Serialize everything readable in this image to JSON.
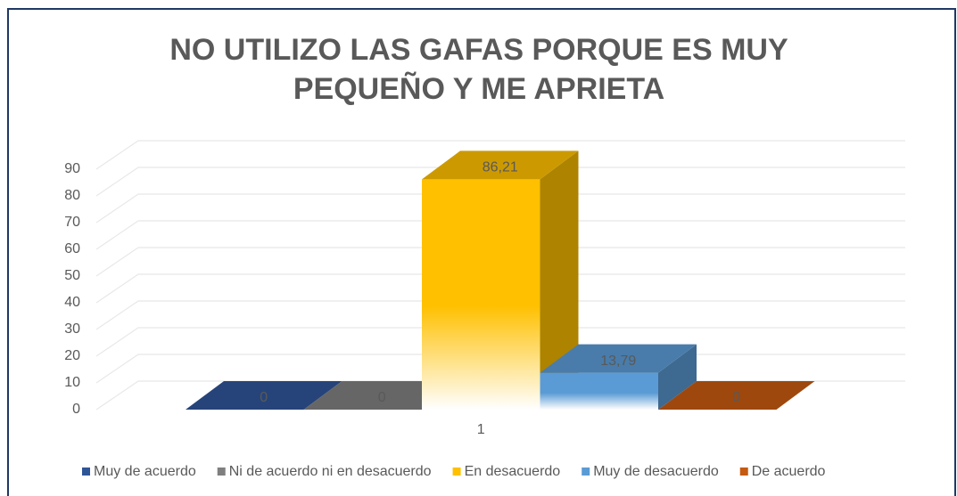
{
  "chart_data": {
    "type": "bar3d",
    "title": [
      "NO UTILIZO LAS GAFAS PORQUE ES MUY",
      "PEQUEÑO Y ME APRIETA"
    ],
    "categories": [
      "1"
    ],
    "series": [
      {
        "name": "Muy de acuerdo",
        "color": "#2f5597",
        "values": [
          0
        ],
        "value_labels": [
          "0"
        ]
      },
      {
        "name": "Ni de acuerdo ni en desacuerdo",
        "color": "#7f7f7f",
        "values": [
          0
        ],
        "value_labels": [
          "0"
        ]
      },
      {
        "name": "En desacuerdo",
        "color": "#ffc000",
        "values": [
          86.21
        ],
        "value_labels": [
          "86,21"
        ]
      },
      {
        "name": "Muy de desacuerdo",
        "color": "#5b9bd5",
        "values": [
          13.79
        ],
        "value_labels": [
          "13,79"
        ]
      },
      {
        "name": "De acuerdo",
        "color": "#c55a11",
        "values": [
          0
        ],
        "value_labels": [
          "0"
        ]
      }
    ],
    "ylim": [
      0,
      90
    ],
    "yticks": [
      0,
      10,
      20,
      30,
      40,
      50,
      60,
      70,
      80,
      90
    ],
    "grid": true,
    "legend": "bottom"
  }
}
